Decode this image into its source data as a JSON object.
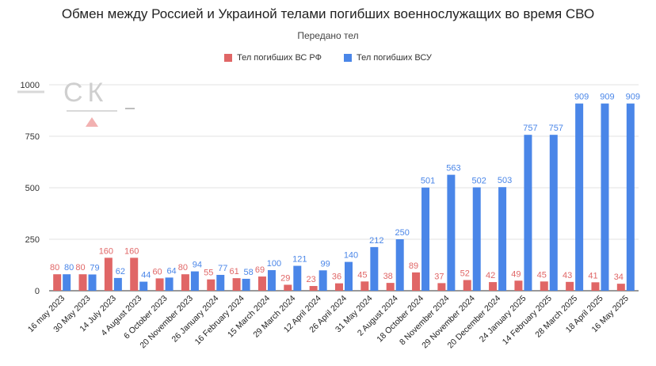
{
  "chart_data": {
    "type": "bar",
    "title": "Обмен между Россией и Украиной телами погибших военнослужащих во время СВО",
    "subtitle": "Передано тел",
    "categories": [
      "16 may 2023",
      "30 May 2023",
      "14 July 2023",
      "4 August 2023",
      "6 October 2023",
      "20 November 2023",
      "26 January 2024",
      "16 February 2024",
      "15 March 2024",
      "29 March 2024",
      "12 April 2024",
      "26 April 2024",
      "31 May 2024",
      "2 August 2024",
      "18 October 2024",
      "8 November 2024",
      "29 November 2024",
      "20 December 2024",
      "24 January 2025",
      "14 February 2025",
      "28 March 2025",
      "18 April 2025",
      "16 May 2025"
    ],
    "series": [
      {
        "name": "Тел погибших ВС  РФ",
        "color": "#e06666",
        "values": [
          80,
          80,
          160,
          160,
          60,
          80,
          55,
          61,
          69,
          29,
          23,
          36,
          45,
          38,
          89,
          37,
          52,
          42,
          49,
          45,
          43,
          41,
          34
        ],
        "labels": [
          "80",
          "80",
          "160",
          "160",
          "60",
          "80",
          "55",
          "61",
          "69",
          "29",
          "23",
          "36",
          "45",
          "38",
          "89",
          "37",
          "52",
          "42",
          "49",
          "45",
          "43",
          "41",
          "34"
        ]
      },
      {
        "name": "Тел погибших ВСУ",
        "color": "#4a86e8",
        "values": [
          80,
          79,
          62,
          44,
          64,
          94,
          77,
          58,
          100,
          121,
          99,
          140,
          212,
          250,
          501,
          563,
          502,
          503,
          757,
          757,
          909,
          909,
          909
        ],
        "labels": [
          "80",
          "79",
          "62",
          "44",
          "64",
          "94",
          "77",
          "58",
          "100",
          "121",
          "99",
          "140",
          "212",
          "250",
          "501",
          "563",
          "502",
          "503",
          "757",
          "757",
          "909",
          "909",
          "909"
        ]
      }
    ],
    "ylim": [
      0,
      1000
    ],
    "yticks": [
      "0",
      "250",
      "500",
      "750",
      "1000"
    ],
    "ytick_values": [
      0,
      250,
      500,
      750,
      1000
    ],
    "grid": true,
    "legend_position": "top"
  },
  "logo": {
    "text": "СК"
  }
}
